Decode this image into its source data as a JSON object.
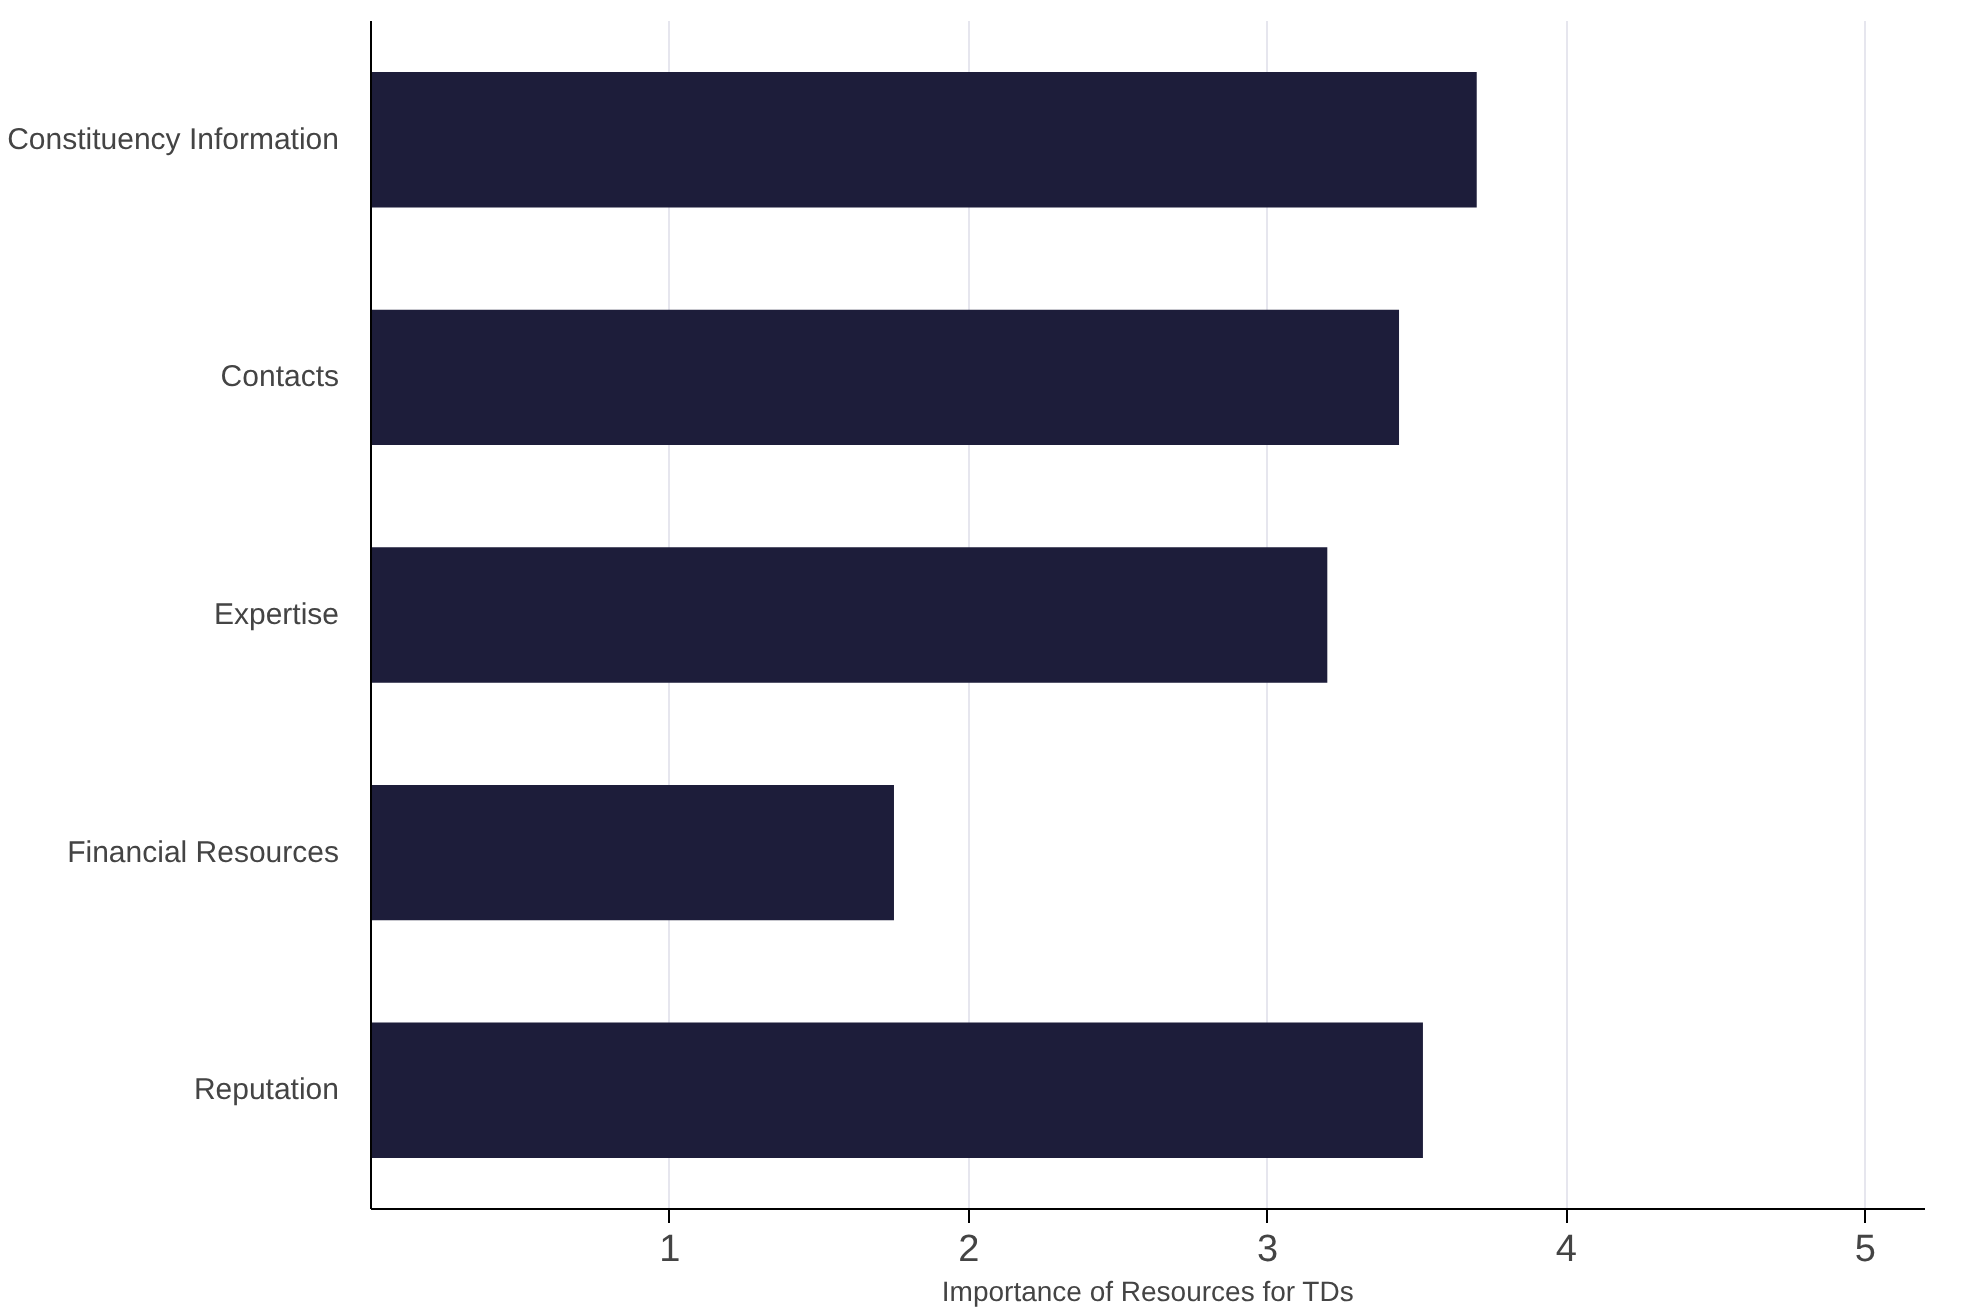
{
  "chart_data": {
    "type": "bar",
    "orientation": "horizontal",
    "xlabel": "Importance of Resources for TDs",
    "categories": [
      "Constituency Information",
      "Contacts",
      "Expertise",
      "Financial Resources",
      "Reputation"
    ],
    "values": [
      3.7,
      3.44,
      3.2,
      1.75,
      3.52
    ],
    "color": "#1d1d3a",
    "xlim": [
      0,
      5.2
    ],
    "xticks": [
      1,
      2,
      3,
      4,
      5
    ],
    "grid": "x"
  }
}
